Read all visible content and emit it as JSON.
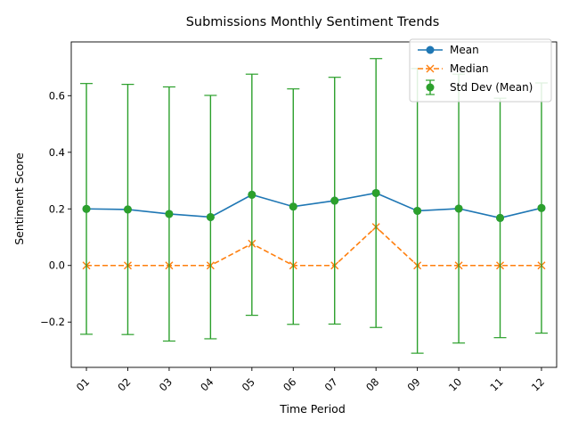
{
  "chart_data": {
    "type": "line",
    "title": "Submissions Monthly Sentiment Trends",
    "xlabel": "Time Period",
    "ylabel": "Sentiment Score",
    "categories": [
      "01",
      "02",
      "03",
      "04",
      "05",
      "06",
      "07",
      "08",
      "09",
      "10",
      "11",
      "12"
    ],
    "yticks": [
      -0.2,
      0.0,
      0.2,
      0.4,
      0.6
    ],
    "ytick_labels": [
      "−0.2",
      "0.0",
      "0.2",
      "0.4",
      "0.6"
    ],
    "ylim": [
      -0.36,
      0.79
    ],
    "grid": false,
    "legend_position": "top-right",
    "series": [
      {
        "name": "Mean",
        "color": "#1f77b4",
        "marker": "circle",
        "linestyle": "solid",
        "values": [
          0.2,
          0.198,
          0.182,
          0.171,
          0.25,
          0.208,
          0.229,
          0.256,
          0.193,
          0.201,
          0.168,
          0.203
        ]
      },
      {
        "name": "Median",
        "color": "#ff7f0e",
        "marker": "x",
        "linestyle": "dashed",
        "values": [
          0.0,
          0.0,
          0.0,
          0.0,
          0.077,
          0.0,
          0.0,
          0.136,
          0.0,
          0.0,
          0.0,
          0.0
        ]
      },
      {
        "name": "Std Dev (Mean)",
        "color": "#2ca02c",
        "marker": "circle",
        "type": "errorbar",
        "values": [
          0.2,
          0.198,
          0.182,
          0.171,
          0.25,
          0.208,
          0.229,
          0.256,
          0.193,
          0.201,
          0.168,
          0.203
        ],
        "errors": [
          0.443,
          0.442,
          0.449,
          0.43,
          0.426,
          0.416,
          0.436,
          0.475,
          0.503,
          0.475,
          0.423,
          0.442
        ]
      }
    ]
  }
}
